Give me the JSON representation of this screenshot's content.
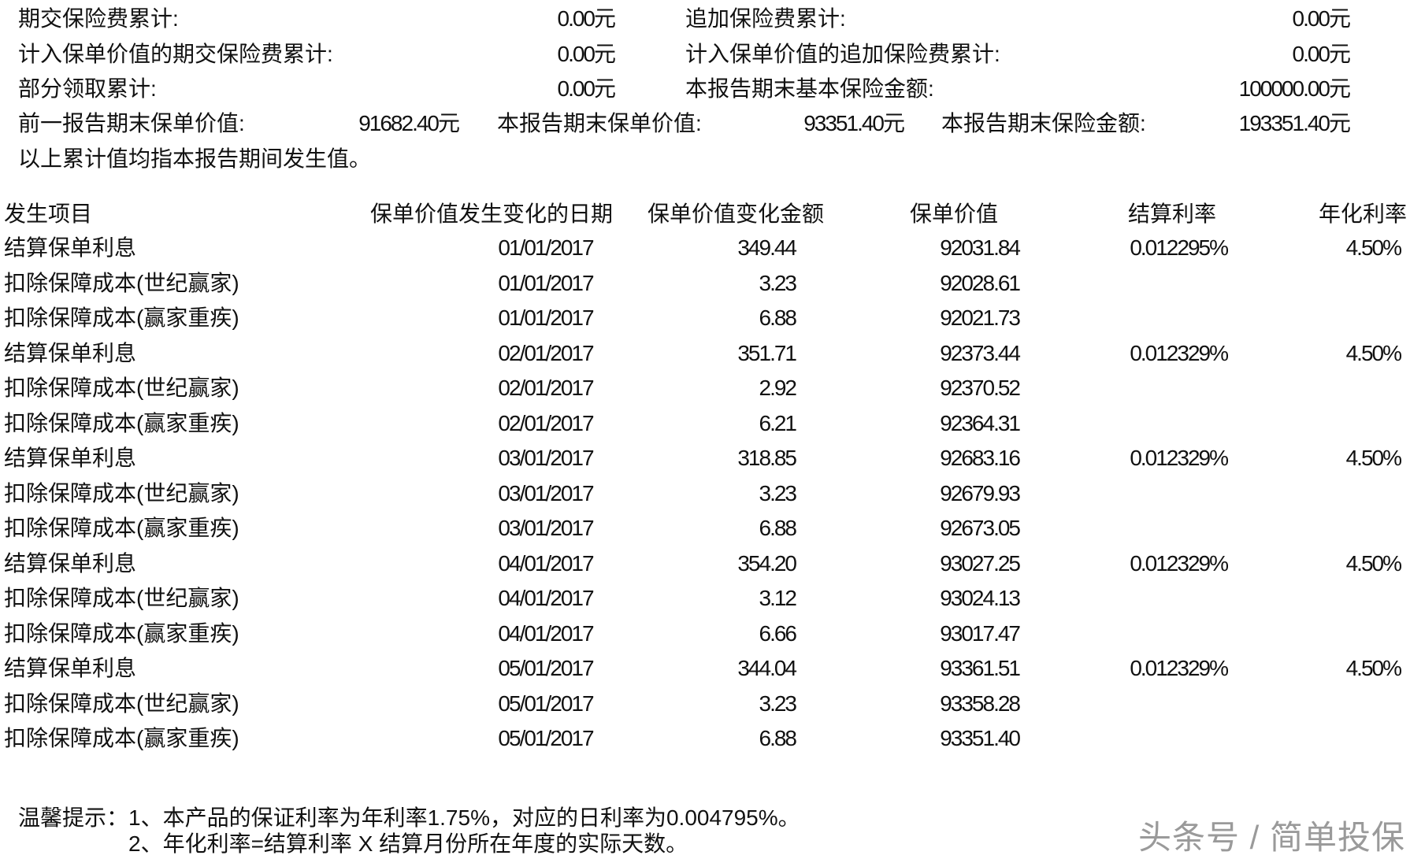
{
  "summary": {
    "periodic_premium_label": "期交保险费累计:",
    "periodic_premium_value": "0.00元",
    "additional_premium_label": "追加保险费累计:",
    "additional_premium_value": "0.00元",
    "periodic_in_value_label": "计入保单价值的期交保险费累计:",
    "periodic_in_value_value": "0.00元",
    "additional_in_value_label": "计入保单价值的追加保险费累计:",
    "additional_in_value_value": "0.00元",
    "partial_withdrawal_label": "部分领取累计:",
    "partial_withdrawal_value": "0.00元",
    "basic_sum_label": "本报告期末基本保险金额:",
    "basic_sum_value": "100000.00元",
    "prev_value_label": "前一报告期末保单价值:",
    "prev_value_value": "91682.40元",
    "curr_value_label": "本报告期末保单价值:",
    "curr_value_value": "93351.40元",
    "curr_sum_label": "本报告期末保险金额:",
    "curr_sum_value": "193351.40元",
    "note": "以上累计值均指本报告期间发生值。"
  },
  "table": {
    "headers": [
      "发生项目",
      "保单价值发生变化的日期",
      "保单价值变化金额",
      "保单价值",
      "结算利率",
      "年化利率"
    ],
    "rows": [
      [
        "结算保单利息",
        "01/01/2017",
        "349.44",
        "92031.84",
        "0.012295%",
        "4.50%"
      ],
      [
        "扣除保障成本(世纪赢家)",
        "01/01/2017",
        "3.23",
        "92028.61",
        "",
        ""
      ],
      [
        "扣除保障成本(赢家重疾)",
        "01/01/2017",
        "6.88",
        "92021.73",
        "",
        ""
      ],
      [
        "结算保单利息",
        "02/01/2017",
        "351.71",
        "92373.44",
        "0.012329%",
        "4.50%"
      ],
      [
        "扣除保障成本(世纪赢家)",
        "02/01/2017",
        "2.92",
        "92370.52",
        "",
        ""
      ],
      [
        "扣除保障成本(赢家重疾)",
        "02/01/2017",
        "6.21",
        "92364.31",
        "",
        ""
      ],
      [
        "结算保单利息",
        "03/01/2017",
        "318.85",
        "92683.16",
        "0.012329%",
        "4.50%"
      ],
      [
        "扣除保障成本(世纪赢家)",
        "03/01/2017",
        "3.23",
        "92679.93",
        "",
        ""
      ],
      [
        "扣除保障成本(赢家重疾)",
        "03/01/2017",
        "6.88",
        "92673.05",
        "",
        ""
      ],
      [
        "结算保单利息",
        "04/01/2017",
        "354.20",
        "93027.25",
        "0.012329%",
        "4.50%"
      ],
      [
        "扣除保障成本(世纪赢家)",
        "04/01/2017",
        "3.12",
        "93024.13",
        "",
        ""
      ],
      [
        "扣除保障成本(赢家重疾)",
        "04/01/2017",
        "6.66",
        "93017.47",
        "",
        ""
      ],
      [
        "结算保单利息",
        "05/01/2017",
        "344.04",
        "93361.51",
        "0.012329%",
        "4.50%"
      ],
      [
        "扣除保障成本(世纪赢家)",
        "05/01/2017",
        "3.23",
        "93358.28",
        "",
        ""
      ],
      [
        "扣除保障成本(赢家重疾)",
        "05/01/2017",
        "6.88",
        "93351.40",
        "",
        ""
      ]
    ]
  },
  "tips": {
    "line1": "温馨提示：1、本产品的保证利率为年利率1.75%，对应的日利率为0.004795%。",
    "line2": "2、年化利率=结算利率 X 结算月份所在年度的实际天数。"
  },
  "watermark": "头条号 / 简单投保"
}
